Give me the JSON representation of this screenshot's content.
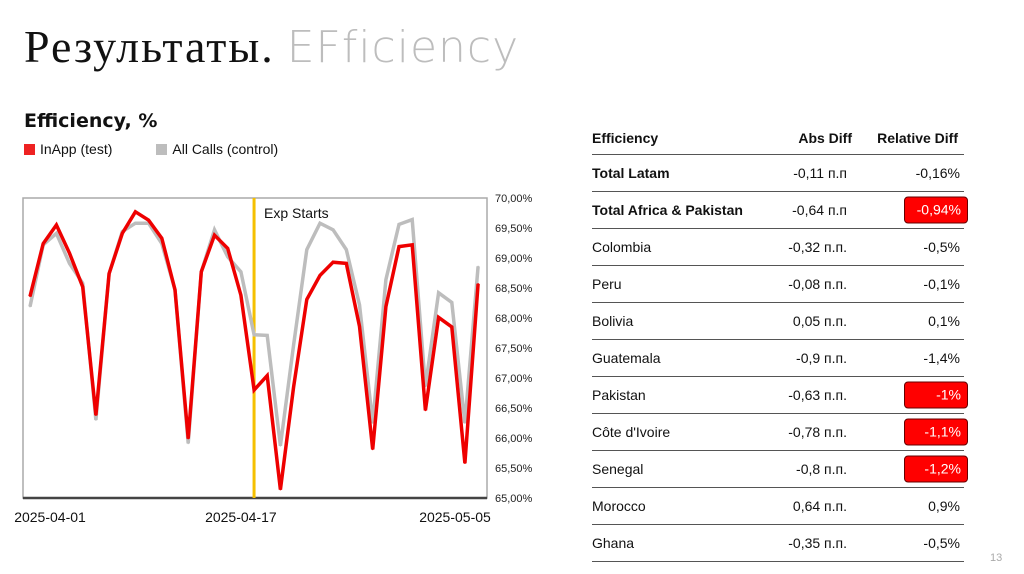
{
  "slide": {
    "title_ru": "Результаты.",
    "title_en": "EFficiency",
    "page_number": "13"
  },
  "chart_data": {
    "type": "line",
    "title": "Efficiency, %",
    "x_start": "2025-04-01",
    "x_ticks": [
      "2025-04-01",
      "2025-04-17",
      "2025-05-05"
    ],
    "ylim": [
      65,
      70
    ],
    "y_ticks": [
      "65,00%",
      "65,50%",
      "66,00%",
      "66,50%",
      "67,00%",
      "67,50%",
      "68,00%",
      "68,50%",
      "69,00%",
      "69,50%",
      "70,00%"
    ],
    "y_axis_side": "right",
    "legend_position": "top-left",
    "grid": false,
    "annotation": {
      "label": "Exp Starts",
      "date": "2025-04-18",
      "color": "#f5c000"
    },
    "series": [
      {
        "name": "InApp (test)",
        "color": "#ee0000",
        "values": [
          68.36,
          69.24,
          69.55,
          69.08,
          68.52,
          66.38,
          68.74,
          69.41,
          69.77,
          69.63,
          69.33,
          68.47,
          65.99,
          68.77,
          69.38,
          69.16,
          68.38,
          66.8,
          67.04,
          65.14,
          66.85,
          68.31,
          68.71,
          68.93,
          68.91,
          67.86,
          65.81,
          68.19,
          69.19,
          69.22,
          66.46,
          68.01,
          67.85,
          65.58,
          68.57
        ]
      },
      {
        "name": "All Calls (control)",
        "color": "#bdbdbd",
        "values": [
          68.19,
          69.22,
          69.41,
          68.91,
          68.58,
          66.3,
          68.74,
          69.44,
          69.58,
          69.58,
          69.24,
          68.47,
          65.91,
          68.77,
          69.47,
          69.02,
          68.77,
          67.72,
          67.71,
          65.87,
          67.55,
          69.14,
          69.58,
          69.47,
          69.14,
          68.22,
          66.25,
          68.64,
          69.56,
          69.64,
          66.86,
          68.42,
          68.26,
          66.25,
          68.86
        ]
      }
    ]
  },
  "table": {
    "headers": {
      "name": "Efficiency",
      "abs": "Abs Diff",
      "rel": "Relative Diff"
    },
    "rows": [
      {
        "name": "Total Latam",
        "abs": "-0,11 п.п",
        "rel": "-0,16%",
        "bold": true,
        "highlight": false
      },
      {
        "name": "Total Africa & Pakistan",
        "abs": "-0,64 п.п",
        "rel": "-0,94%",
        "bold": true,
        "highlight": true
      },
      {
        "name": "Colombia",
        "abs": "-0,32 п.п.",
        "rel": "-0,5%",
        "bold": false,
        "highlight": false
      },
      {
        "name": "Peru",
        "abs": "-0,08 п.п.",
        "rel": "-0,1%",
        "bold": false,
        "highlight": false
      },
      {
        "name": "Bolivia",
        "abs": "0,05 п.п.",
        "rel": "0,1%",
        "bold": false,
        "highlight": false
      },
      {
        "name": "Guatemala",
        "abs": "-0,9 п.п.",
        "rel": "-1,4%",
        "bold": false,
        "highlight": false
      },
      {
        "name": "Pakistan",
        "abs": "-0,63 п.п.",
        "rel": "-1%",
        "bold": false,
        "highlight": true
      },
      {
        "name": "Côte d'Ivoire",
        "abs": "-0,78 п.п.",
        "rel": "-1,1%",
        "bold": false,
        "highlight": true
      },
      {
        "name": "Senegal",
        "abs": "-0,8 п.п.",
        "rel": "-1,2%",
        "bold": false,
        "highlight": true
      },
      {
        "name": "Morocco",
        "abs": "0,64 п.п.",
        "rel": "0,9%",
        "bold": false,
        "highlight": false
      },
      {
        "name": "Ghana",
        "abs": "-0,35 п.п.",
        "rel": "-0,5%",
        "bold": false,
        "highlight": false
      }
    ],
    "highlight_color": "#ff0000"
  }
}
